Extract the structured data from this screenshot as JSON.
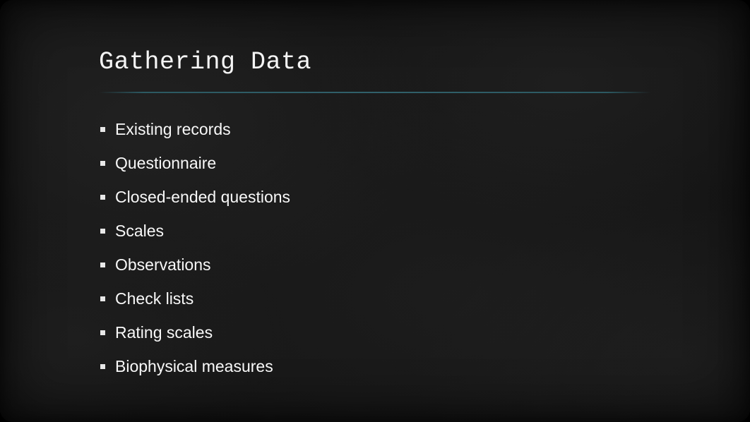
{
  "slide": {
    "title": "Gathering Data",
    "title_font": "monospace",
    "title_fontsize": 35,
    "title_color": "#f5f5f5",
    "divider_color": "#2d5f69",
    "background_base": "#161616",
    "text_color": "#f8f8f8",
    "bullet_fontsize": 23,
    "bullet_marker_color": "#e8e8e8",
    "bullet_marker_size": 7,
    "border_radius": 18,
    "items": [
      "Existing records",
      "Questionnaire",
      "Closed-ended questions",
      "Scales",
      "Observations",
      "Check lists",
      "Rating scales",
      "Biophysical measures"
    ]
  }
}
